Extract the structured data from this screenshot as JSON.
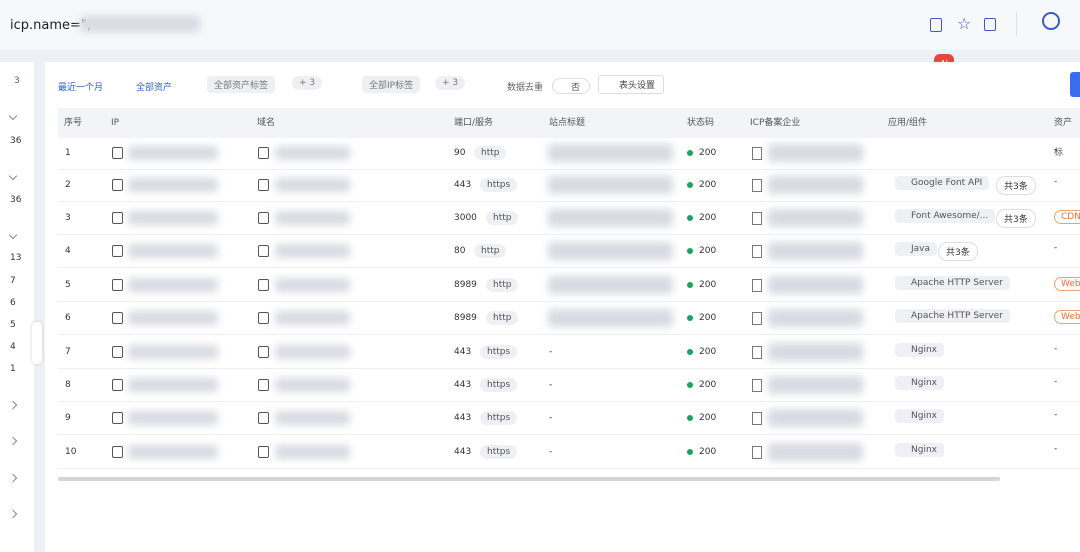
{
  "search": {
    "query": "icp.name=\","
  },
  "ai_badge": "AI",
  "sidebar": {
    "counts": [
      "3",
      "36",
      "36",
      "13",
      "7",
      "6",
      "5",
      "4",
      "1"
    ]
  },
  "filters": {
    "time": "最近一个月",
    "assets": "全部资产",
    "asset_tags": "全部资产标签",
    "asset_tags_more": "+ 3",
    "ip_tags": "全部IP标签",
    "ip_tags_more": "+ 3",
    "dedupe": "数据去重",
    "dedupe_value": "否",
    "columns": "表头设置"
  },
  "table": {
    "headers": [
      "序号",
      "IP",
      "域名",
      "端口/服务",
      "站点标题",
      "状态码",
      "ICP备案企业",
      "应用/组件",
      "资产标"
    ],
    "rows": [
      {
        "index": "1",
        "port": "90",
        "service": "http",
        "status": "200",
        "tag": "-"
      },
      {
        "index": "2",
        "port": "443",
        "service": "https",
        "status": "200",
        "component": "Google Font API",
        "count": "共3条",
        "tag": "-"
      },
      {
        "index": "3",
        "port": "3000",
        "service": "http",
        "status": "200",
        "component": "Font Awesome/...",
        "count": "共3条",
        "tag": "CDN"
      },
      {
        "index": "4",
        "port": "80",
        "service": "http",
        "status": "200",
        "component": "Java",
        "count": "共3条",
        "tag": "-"
      },
      {
        "index": "5",
        "port": "8989",
        "service": "http",
        "status": "200",
        "component": "Apache HTTP Server",
        "tag": "Web"
      },
      {
        "index": "6",
        "port": "8989",
        "service": "http",
        "status": "200",
        "component": "Apache HTTP Server",
        "tag": "Web"
      },
      {
        "index": "7",
        "port": "443",
        "service": "https",
        "site_title": "-",
        "status": "200",
        "component": "Nginx",
        "tag": "-"
      },
      {
        "index": "8",
        "port": "443",
        "service": "https",
        "site_title": "-",
        "status": "200",
        "component": "Nginx",
        "tag": "-"
      },
      {
        "index": "9",
        "port": "443",
        "service": "https",
        "site_title": "-",
        "status": "200",
        "component": "Nginx",
        "tag": "-"
      },
      {
        "index": "10",
        "port": "443",
        "service": "https",
        "site_title": "-",
        "status": "200",
        "component": "Nginx",
        "tag": "-"
      }
    ]
  }
}
